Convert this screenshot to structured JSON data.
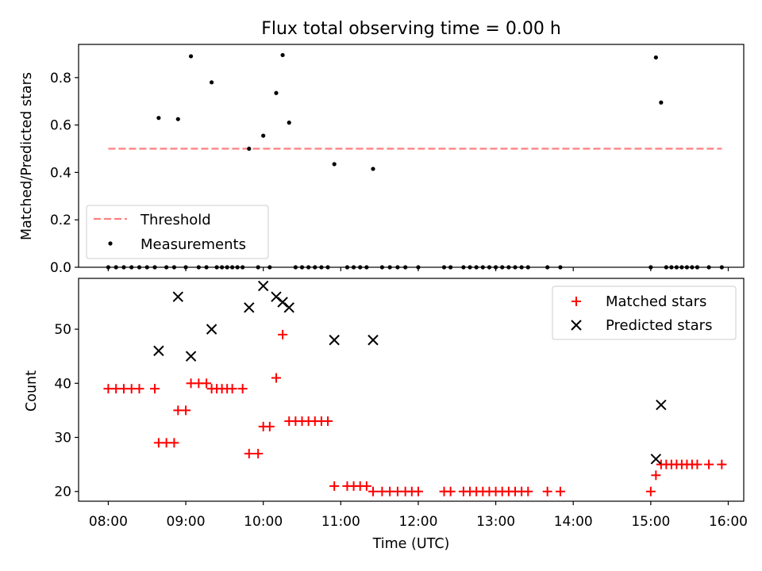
{
  "title": "Flux total observing time = 0.00 h",
  "colors": {
    "threshold": "#ff7f7f",
    "measurements": "#000000",
    "matched": "#ff0000",
    "predicted": "#000000"
  },
  "chart_data": [
    {
      "type": "scatter",
      "panel": "top",
      "ylabel": "Matched/Predicted stars",
      "ylim": [
        0,
        0.94
      ],
      "yticks": [
        0.0,
        0.2,
        0.4,
        0.6,
        0.8
      ],
      "xlim": [
        "07:37",
        "16:12"
      ],
      "grid": false,
      "legend_position": "lower-left",
      "series": [
        {
          "name": "Threshold",
          "kind": "dashed-line",
          "x": [
            "08:00",
            "15:55"
          ],
          "y": [
            0.5,
            0.5
          ]
        },
        {
          "name": "Measurements",
          "kind": "points",
          "points": [
            [
              "08:00",
              0
            ],
            [
              "08:06",
              0
            ],
            [
              "08:12",
              0
            ],
            [
              "08:18",
              0
            ],
            [
              "08:24",
              0
            ],
            [
              "08:30",
              0
            ],
            [
              "08:36",
              0
            ],
            [
              "08:39",
              0.63
            ],
            [
              "08:45",
              0
            ],
            [
              "08:51",
              0
            ],
            [
              "08:54",
              0.625
            ],
            [
              "09:00",
              0
            ],
            [
              "09:04",
              0.89
            ],
            [
              "09:10",
              0
            ],
            [
              "09:16",
              0
            ],
            [
              "09:20",
              0.78
            ],
            [
              "09:24",
              0
            ],
            [
              "09:28",
              0
            ],
            [
              "09:32",
              0
            ],
            [
              "09:36",
              0
            ],
            [
              "09:40",
              0
            ],
            [
              "09:44",
              0
            ],
            [
              "09:49",
              0.5
            ],
            [
              "09:56",
              0
            ],
            [
              "10:00",
              0.555
            ],
            [
              "10:05",
              0
            ],
            [
              "10:10",
              0.735
            ],
            [
              "10:15",
              0.895
            ],
            [
              "10:20",
              0.61
            ],
            [
              "10:25",
              0
            ],
            [
              "10:30",
              0
            ],
            [
              "10:35",
              0
            ],
            [
              "10:40",
              0
            ],
            [
              "10:45",
              0
            ],
            [
              "10:50",
              0
            ],
            [
              "10:55",
              0.435
            ],
            [
              "11:05",
              0
            ],
            [
              "11:10",
              0
            ],
            [
              "11:15",
              0
            ],
            [
              "11:20",
              0
            ],
            [
              "11:25",
              0.415
            ],
            [
              "11:32",
              0
            ],
            [
              "11:38",
              0
            ],
            [
              "11:44",
              0
            ],
            [
              "11:50",
              0
            ],
            [
              "12:00",
              0
            ],
            [
              "12:20",
              0
            ],
            [
              "12:25",
              0
            ],
            [
              "12:35",
              0
            ],
            [
              "12:40",
              0
            ],
            [
              "12:45",
              0
            ],
            [
              "12:50",
              0
            ],
            [
              "12:55",
              0
            ],
            [
              "13:00",
              0
            ],
            [
              "13:05",
              0
            ],
            [
              "13:10",
              0
            ],
            [
              "13:15",
              0
            ],
            [
              "13:20",
              0
            ],
            [
              "13:25",
              0
            ],
            [
              "13:40",
              0
            ],
            [
              "13:50",
              0
            ],
            [
              "15:00",
              0
            ],
            [
              "15:04",
              0.885
            ],
            [
              "15:08",
              0.695
            ],
            [
              "15:12",
              0
            ],
            [
              "15:16",
              0
            ],
            [
              "15:20",
              0
            ],
            [
              "15:24",
              0
            ],
            [
              "15:28",
              0
            ],
            [
              "15:32",
              0
            ],
            [
              "15:36",
              0
            ],
            [
              "15:45",
              0
            ],
            [
              "15:55",
              0
            ]
          ]
        }
      ]
    },
    {
      "type": "scatter",
      "panel": "bottom",
      "xlabel": "Time (UTC)",
      "ylabel": "Count",
      "ylim": [
        18.2,
        59.4
      ],
      "yticks": [
        20,
        30,
        40,
        50
      ],
      "xlim": [
        "07:37",
        "16:12"
      ],
      "xticks": [
        "08:00",
        "09:00",
        "10:00",
        "11:00",
        "12:00",
        "13:00",
        "14:00",
        "15:00",
        "16:00"
      ],
      "grid": false,
      "legend_position": "upper-right",
      "series": [
        {
          "name": "Matched stars",
          "kind": "plus",
          "points": [
            [
              "08:00",
              39
            ],
            [
              "08:06",
              39
            ],
            [
              "08:12",
              39
            ],
            [
              "08:18",
              39
            ],
            [
              "08:24",
              39
            ],
            [
              "08:36",
              39
            ],
            [
              "08:39",
              29
            ],
            [
              "08:45",
              29
            ],
            [
              "08:51",
              29
            ],
            [
              "08:54",
              35
            ],
            [
              "09:00",
              35
            ],
            [
              "09:04",
              40
            ],
            [
              "09:10",
              40
            ],
            [
              "09:16",
              40
            ],
            [
              "09:20",
              39
            ],
            [
              "09:24",
              39
            ],
            [
              "09:28",
              39
            ],
            [
              "09:32",
              39
            ],
            [
              "09:36",
              39
            ],
            [
              "09:44",
              39
            ],
            [
              "09:49",
              27
            ],
            [
              "09:56",
              27
            ],
            [
              "10:00",
              32
            ],
            [
              "10:05",
              32
            ],
            [
              "10:10",
              41
            ],
            [
              "10:15",
              49
            ],
            [
              "10:20",
              33
            ],
            [
              "10:25",
              33
            ],
            [
              "10:30",
              33
            ],
            [
              "10:35",
              33
            ],
            [
              "10:40",
              33
            ],
            [
              "10:45",
              33
            ],
            [
              "10:50",
              33
            ],
            [
              "10:55",
              21
            ],
            [
              "11:05",
              21
            ],
            [
              "11:10",
              21
            ],
            [
              "11:15",
              21
            ],
            [
              "11:20",
              21
            ],
            [
              "11:25",
              20
            ],
            [
              "11:32",
              20
            ],
            [
              "11:38",
              20
            ],
            [
              "11:44",
              20
            ],
            [
              "11:50",
              20
            ],
            [
              "11:55",
              20
            ],
            [
              "12:00",
              20
            ],
            [
              "12:20",
              20
            ],
            [
              "12:25",
              20
            ],
            [
              "12:35",
              20
            ],
            [
              "12:40",
              20
            ],
            [
              "12:45",
              20
            ],
            [
              "12:50",
              20
            ],
            [
              "12:55",
              20
            ],
            [
              "13:00",
              20
            ],
            [
              "13:05",
              20
            ],
            [
              "13:10",
              20
            ],
            [
              "13:15",
              20
            ],
            [
              "13:20",
              20
            ],
            [
              "13:25",
              20
            ],
            [
              "13:40",
              20
            ],
            [
              "13:50",
              20
            ],
            [
              "15:00",
              20
            ],
            [
              "15:04",
              23
            ],
            [
              "15:08",
              25
            ],
            [
              "15:12",
              25
            ],
            [
              "15:16",
              25
            ],
            [
              "15:20",
              25
            ],
            [
              "15:24",
              25
            ],
            [
              "15:28",
              25
            ],
            [
              "15:32",
              25
            ],
            [
              "15:36",
              25
            ],
            [
              "15:45",
              25
            ],
            [
              "15:55",
              25
            ]
          ]
        },
        {
          "name": "Predicted stars",
          "kind": "cross",
          "points": [
            [
              "08:39",
              46
            ],
            [
              "08:54",
              56
            ],
            [
              "09:04",
              45
            ],
            [
              "09:20",
              50
            ],
            [
              "09:49",
              54
            ],
            [
              "10:00",
              58
            ],
            [
              "10:10",
              56
            ],
            [
              "10:15",
              55
            ],
            [
              "10:20",
              54
            ],
            [
              "10:55",
              48
            ],
            [
              "11:25",
              48
            ],
            [
              "15:04",
              26
            ],
            [
              "15:08",
              36
            ]
          ]
        }
      ]
    }
  ]
}
